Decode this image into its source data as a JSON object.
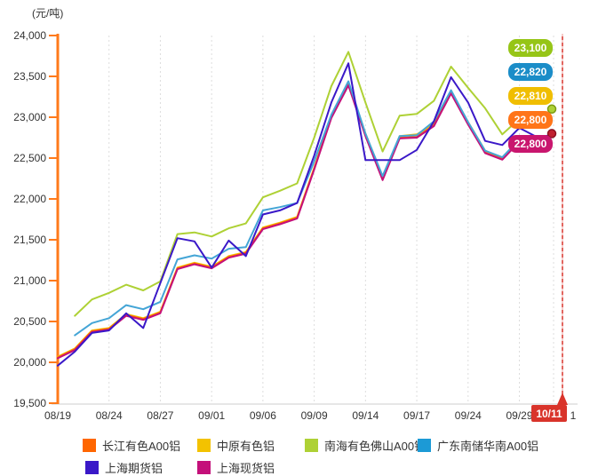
{
  "unit_label": "(元/吨)",
  "chart_data": {
    "type": "line",
    "title": "",
    "unit": "元/吨",
    "x_labels": [
      "08/19",
      "08/24",
      "08/27",
      "09/01",
      "09/06",
      "09/09",
      "09/14",
      "09/17",
      "09/24",
      "09/29",
      "10/11"
    ],
    "x_label_indices": [
      0,
      3,
      6,
      9,
      12,
      15,
      18,
      21,
      24,
      27,
      29
    ],
    "n_points": 30,
    "ylim": [
      19500,
      24000
    ],
    "y_tick_step": 500,
    "grid": "vertical-dashed",
    "legend_position": "bottom",
    "axis_color": "#FF7A1A",
    "series": [
      {
        "name": "长江有色A00铝",
        "color": "#FF6600",
        "values": [
          20060,
          20160,
          20380,
          20410,
          20580,
          20530,
          20610,
          21150,
          21210,
          21160,
          21290,
          21340,
          21640,
          21700,
          21770,
          22370,
          23000,
          23400,
          22780,
          22240,
          22750,
          22760,
          22900,
          23300,
          22920,
          22570,
          22490,
          22710,
          22650,
          22800
        ]
      },
      {
        "name": "中原有色铝",
        "color": "#F3C200",
        "values": [
          20070,
          20170,
          20390,
          20420,
          20590,
          20540,
          20620,
          21160,
          21220,
          21170,
          21300,
          21350,
          21650,
          21710,
          21780,
          22380,
          23010,
          23410,
          22800,
          22260,
          22770,
          22790,
          22920,
          23310,
          22940,
          22590,
          22500,
          22720,
          22660,
          22810
        ]
      },
      {
        "name": "南海有色佛山A00铝",
        "color": "#AED135",
        "values": [
          null,
          20570,
          20770,
          20850,
          20950,
          20880,
          20990,
          21570,
          21590,
          21540,
          21640,
          21700,
          22020,
          22100,
          22190,
          22750,
          23380,
          23800,
          23180,
          22580,
          23020,
          23040,
          23200,
          23620,
          23360,
          23110,
          22790,
          22980,
          22900,
          23100
        ]
      },
      {
        "name": "广东南储华南A00铝",
        "color": "#44A5D6",
        "values": [
          null,
          20330,
          20480,
          20540,
          20700,
          20650,
          20740,
          21260,
          21310,
          21270,
          21390,
          21410,
          21860,
          21900,
          21950,
          22460,
          23030,
          23440,
          22800,
          22280,
          22770,
          22780,
          22950,
          23330,
          22940,
          22590,
          22510,
          22730,
          22700,
          22820
        ]
      },
      {
        "name": "上海期货铝",
        "color": "#3A18C8",
        "values": [
          19960,
          20130,
          20360,
          20390,
          20600,
          20420,
          20970,
          21520,
          21480,
          21160,
          21490,
          21300,
          21810,
          21860,
          21950,
          22530,
          23180,
          23660,
          22475,
          22475,
          22475,
          22600,
          22950,
          23490,
          23180,
          22710,
          22660,
          22870,
          22760,
          22780
        ]
      },
      {
        "name": "上海现货铝",
        "color": "#C4107A",
        "values": [
          20050,
          20150,
          20370,
          20400,
          20570,
          20520,
          20600,
          21140,
          21200,
          21150,
          21280,
          21330,
          21630,
          21690,
          21760,
          22360,
          22990,
          23390,
          22770,
          22230,
          22740,
          22750,
          22890,
          23290,
          22910,
          22560,
          22480,
          22700,
          22640,
          22800
        ]
      }
    ],
    "end_labels": [
      {
        "text": "23,100",
        "color": "#96C517"
      },
      {
        "text": "22,820",
        "color": "#1B8DC8"
      },
      {
        "text": "22,810",
        "color": "#F0BE00"
      },
      {
        "text": "22,800",
        "color": "#FF7519"
      },
      {
        "text": "22,800",
        "color": "#C9166E"
      }
    ],
    "current_marker": {
      "label": "10/11",
      "color": "#D9342B",
      "partial_text_behind": "1"
    }
  },
  "legend": {
    "items": [
      {
        "label": "长江有色A00铝",
        "color": "#FF6600"
      },
      {
        "label": "中原有色铝",
        "color": "#F3C200"
      },
      {
        "label": "南海有色佛山A00铝",
        "color": "#AED135"
      },
      {
        "label": "广东南储华南A00铝",
        "color": "#1C9AD6"
      },
      {
        "label": "上海期货铝",
        "color": "#3A18C8"
      },
      {
        "label": "上海现货铝",
        "color": "#C4107A"
      }
    ]
  }
}
